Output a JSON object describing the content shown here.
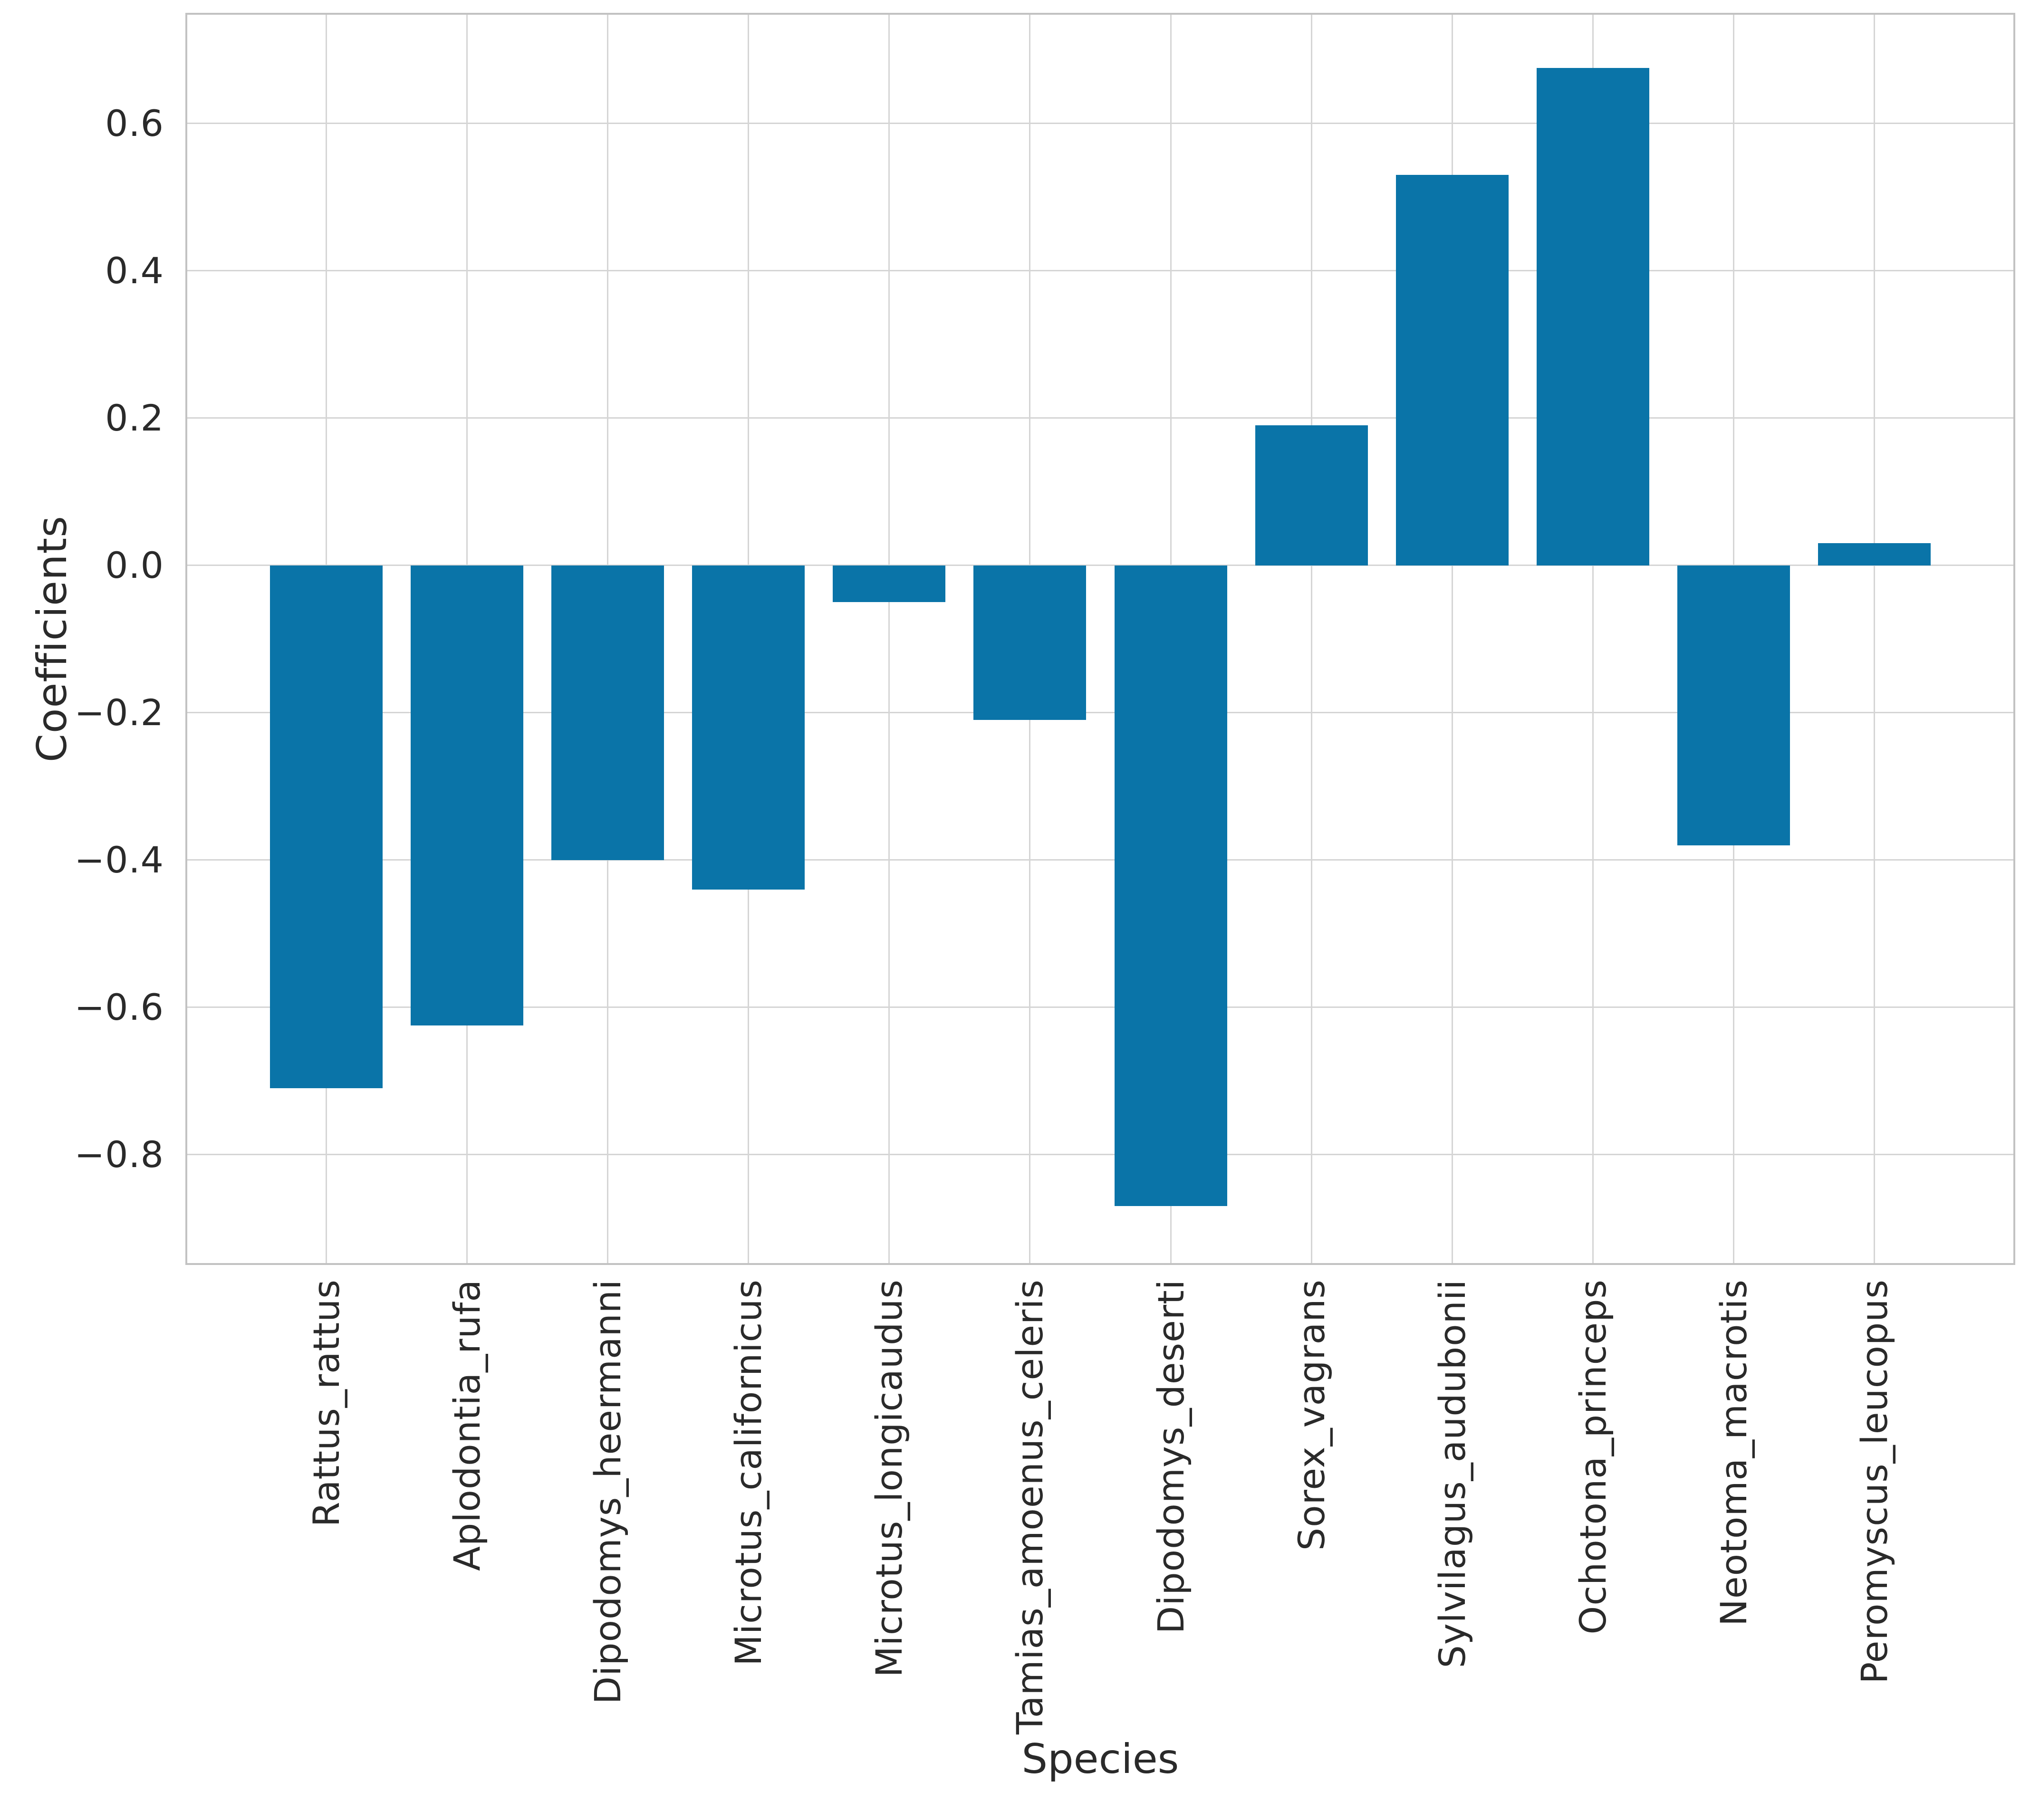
{
  "figure": {
    "background_color": "#ffffff",
    "text_color": "#2a2a2a",
    "grid_color": "#d5d5d5",
    "spine_color": "#c2c2c2"
  },
  "chart_data": {
    "type": "bar",
    "title": "",
    "xlabel": "Species",
    "ylabel": "Coefficients",
    "categories": [
      "Rattus_rattus",
      "Aplodontia_rufa",
      "Dipodomys_heermanni",
      "Microtus_californicus",
      "Microtus_longicaudus",
      "Tamias_amoenus_celeris",
      "Dipodomys_deserti",
      "Sorex_vagrans",
      "Sylvilagus_audubonii",
      "Ochotona_princeps",
      "Neotoma_macrotis",
      "Peromyscus_leucopus"
    ],
    "values": [
      -0.71,
      -0.625,
      -0.4,
      -0.44,
      -0.05,
      -0.21,
      -0.87,
      0.19,
      0.53,
      0.675,
      -0.38,
      0.03
    ],
    "bar_color": "#0a74a8",
    "ylim": [
      -0.95,
      0.75
    ],
    "yticks": [
      0.6,
      0.4,
      0.2,
      0.0,
      -0.2,
      -0.4,
      -0.6,
      -0.8
    ],
    "ytick_labels": [
      "0.6",
      "0.4",
      "0.2",
      "0.0",
      "−0.2",
      "−0.4",
      "−0.6",
      "−0.8"
    ],
    "grid": "on",
    "legend": "none"
  }
}
